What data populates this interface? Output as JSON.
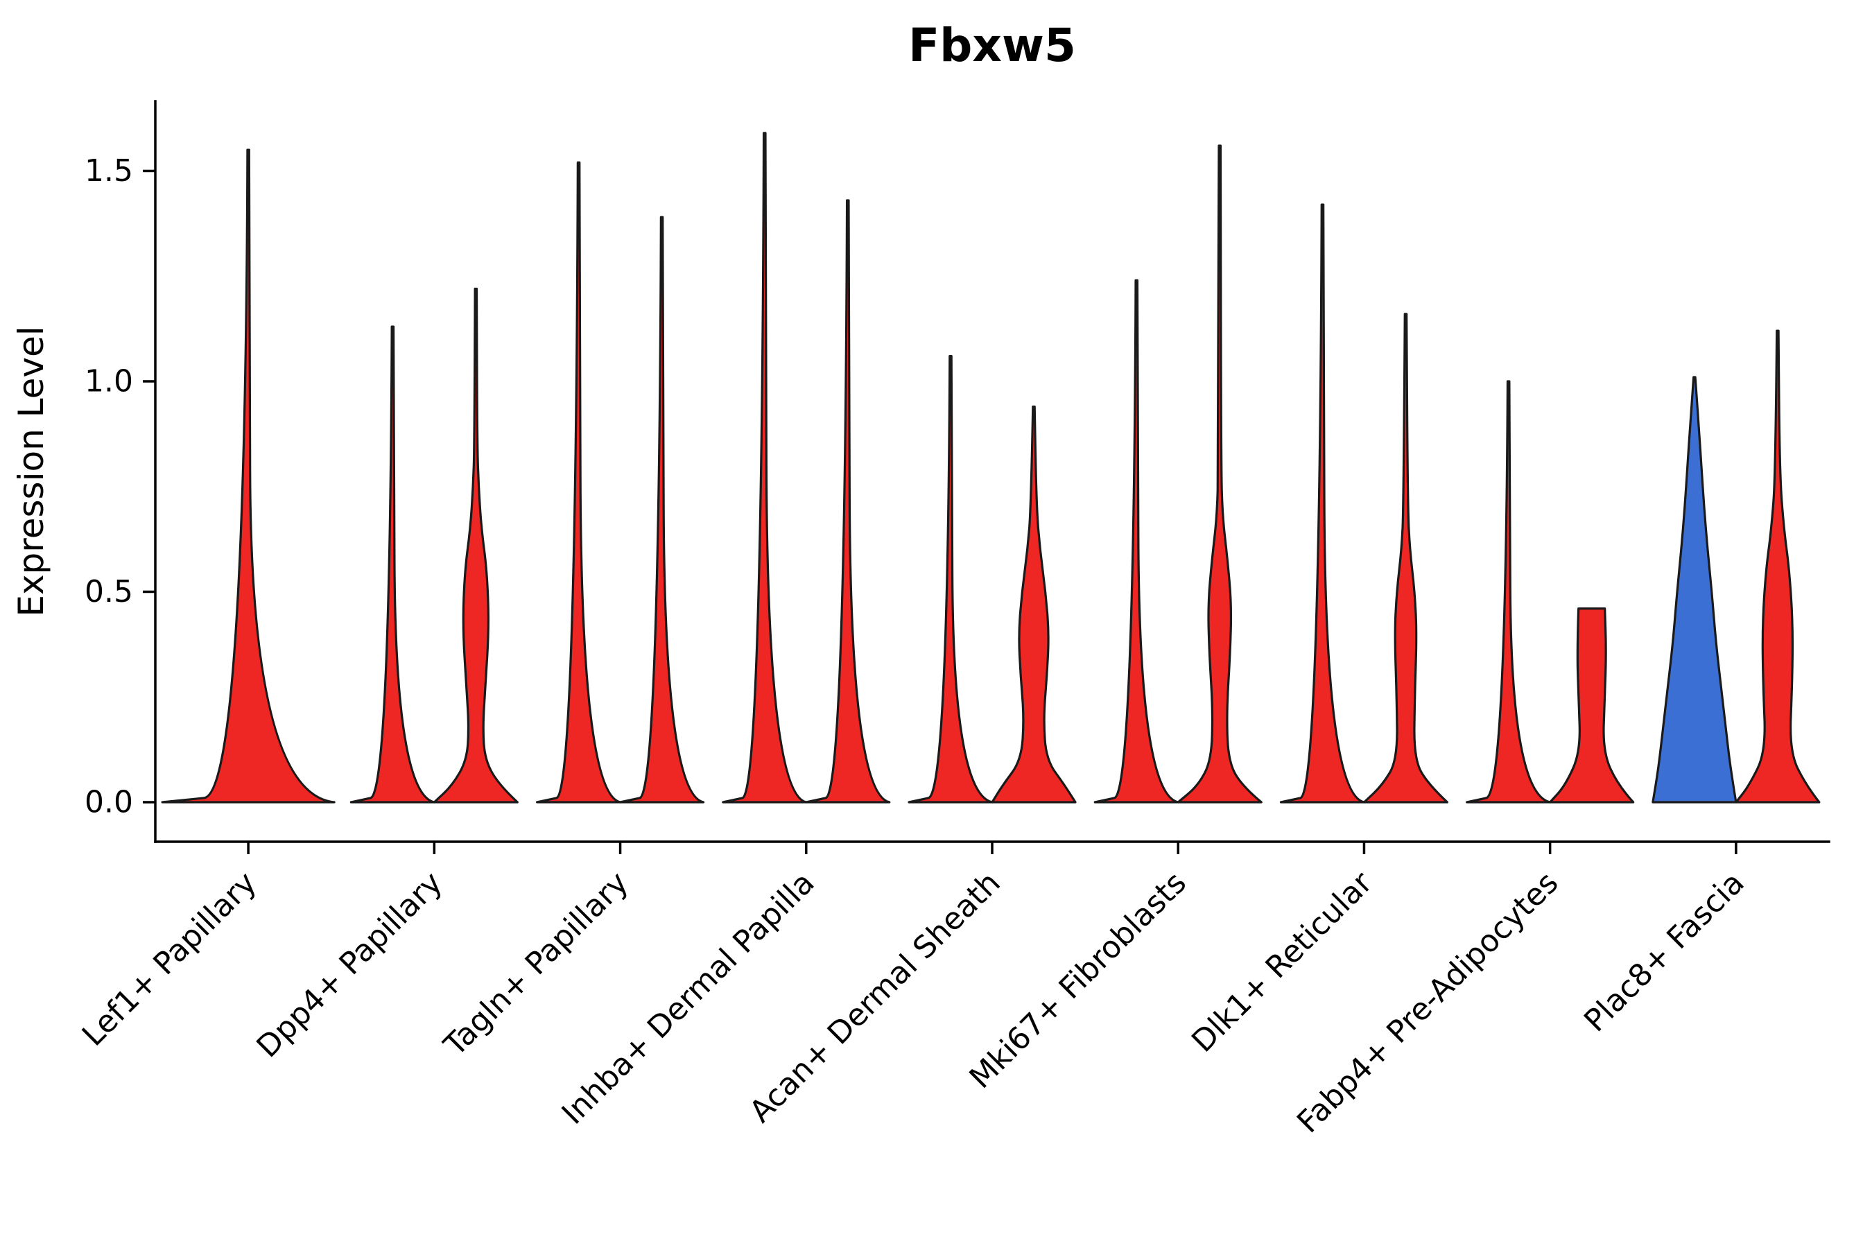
{
  "colors": {
    "red": "#ee2724",
    "blue": "#3b6fd4",
    "outline": "#1a1a1a",
    "background": "#ffffff"
  },
  "chart_data": {
    "type": "violin",
    "title": "Fbxw5",
    "xlabel": "",
    "ylabel": "Expression Level",
    "ylim": [
      -0.05,
      1.66
    ],
    "grid": false,
    "legend": null,
    "ytick_labels": [
      "0.0",
      "0.5",
      "1.0",
      "1.5"
    ],
    "ytick_values": [
      0,
      0.5,
      1.0,
      1.5
    ],
    "categories": [
      "Lef1+ Papillary",
      "Dpp4+ Papillary",
      "Tagln+ Papillary",
      "Inhba+ Dermal Papilla",
      "Acan+ Dermal Sheath",
      "Mki67+ Fibroblasts",
      "Dlk1+ Reticular",
      "Fabp4+ Pre-Adipocytes",
      "Plac8+ Fascia"
    ],
    "violins": [
      {
        "cat": 0,
        "category": "Lef1+ Papillary",
        "group": "single",
        "offset": 0,
        "fill": "red",
        "max_expression": 1.55,
        "bulk_at_zero": true,
        "profile": [
          [
            0,
            124
          ],
          [
            0.02,
            4
          ],
          [
            1.55,
            1.2
          ]
        ]
      },
      {
        "cat": 1,
        "category": "Dpp4+ Papillary",
        "group": "left",
        "offset": -60,
        "fill": "red",
        "max_expression": 1.13,
        "bulk_at_zero": true,
        "profile": [
          [
            0,
            60
          ],
          [
            0.02,
            4
          ],
          [
            1.13,
            1.2
          ]
        ]
      },
      {
        "cat": 1,
        "category": "Dpp4+ Papillary",
        "group": "right",
        "offset": 60,
        "fill": "red",
        "max_expression": 1.22,
        "bulge_center": 0.45,
        "profile": [
          [
            0,
            60
          ],
          [
            0.04,
            34
          ],
          [
            0.1,
            13
          ],
          [
            0.18,
            10
          ],
          [
            0.28,
            14
          ],
          [
            0.42,
            19
          ],
          [
            0.55,
            16
          ],
          [
            0.65,
            8
          ],
          [
            0.75,
            4
          ],
          [
            0.85,
            2
          ],
          [
            1.22,
            1.2
          ]
        ]
      },
      {
        "cat": 2,
        "category": "Tagln+ Papillary",
        "group": "left",
        "offset": -60,
        "fill": "red",
        "max_expression": 1.52,
        "bulk_at_zero": true,
        "profile": [
          [
            0,
            60
          ],
          [
            0.02,
            4
          ],
          [
            1.52,
            1.2
          ]
        ]
      },
      {
        "cat": 2,
        "category": "Tagln+ Papillary",
        "group": "right",
        "offset": 60,
        "fill": "red",
        "max_expression": 1.39,
        "bulk_at_zero": true,
        "profile": [
          [
            0,
            60
          ],
          [
            0.02,
            4
          ],
          [
            1.39,
            1.2
          ]
        ]
      },
      {
        "cat": 3,
        "category": "Inhba+ Dermal Papilla",
        "group": "left",
        "offset": -60,
        "fill": "red",
        "max_expression": 1.59,
        "bulk_at_zero": true,
        "profile": [
          [
            0,
            60
          ],
          [
            0.02,
            4
          ],
          [
            1.59,
            1.2
          ]
        ]
      },
      {
        "cat": 3,
        "category": "Inhba+ Dermal Papilla",
        "group": "right",
        "offset": 60,
        "fill": "red",
        "max_expression": 1.43,
        "bulk_at_zero": true,
        "profile": [
          [
            0,
            60
          ],
          [
            0.02,
            4
          ],
          [
            1.43,
            1.2
          ]
        ]
      },
      {
        "cat": 4,
        "category": "Acan+ Dermal Sheath",
        "group": "left",
        "offset": -60,
        "fill": "red",
        "max_expression": 1.06,
        "bulk_at_zero": true,
        "profile": [
          [
            0,
            60
          ],
          [
            0.02,
            4
          ],
          [
            1.06,
            1.2
          ]
        ]
      },
      {
        "cat": 4,
        "category": "Acan+ Dermal Sheath",
        "group": "right",
        "offset": 60,
        "fill": "red",
        "max_expression": 0.94,
        "bulge_center": 0.4,
        "profile": [
          [
            0,
            60
          ],
          [
            0.04,
            45
          ],
          [
            0.1,
            18
          ],
          [
            0.2,
            14
          ],
          [
            0.3,
            19
          ],
          [
            0.4,
            22
          ],
          [
            0.5,
            17
          ],
          [
            0.6,
            9
          ],
          [
            0.7,
            4
          ],
          [
            0.94,
            1.2
          ]
        ]
      },
      {
        "cat": 5,
        "category": "Mki67+ Fibroblasts",
        "group": "left",
        "offset": -60,
        "fill": "red",
        "max_expression": 1.24,
        "bulk_at_zero": true,
        "profile": [
          [
            0,
            60
          ],
          [
            0.02,
            4
          ],
          [
            1.24,
            1.2
          ]
        ]
      },
      {
        "cat": 5,
        "category": "Mki67+ Fibroblasts",
        "group": "right",
        "offset": 60,
        "fill": "red",
        "max_expression": 1.56,
        "bulge_center": 0.45,
        "profile": [
          [
            0,
            60
          ],
          [
            0.04,
            31
          ],
          [
            0.1,
            12
          ],
          [
            0.22,
            10
          ],
          [
            0.35,
            15
          ],
          [
            0.47,
            17
          ],
          [
            0.58,
            11
          ],
          [
            0.68,
            4
          ],
          [
            0.8,
            2
          ],
          [
            1.56,
            1.2
          ]
        ]
      },
      {
        "cat": 6,
        "category": "Dlk1+ Reticular",
        "group": "left",
        "offset": -60,
        "fill": "red",
        "max_expression": 1.42,
        "bulk_at_zero": true,
        "profile": [
          [
            0,
            60
          ],
          [
            0.02,
            4
          ],
          [
            1.42,
            1.2
          ]
        ]
      },
      {
        "cat": 6,
        "category": "Dlk1+ Reticular",
        "group": "right",
        "offset": 60,
        "fill": "red",
        "max_expression": 1.16,
        "bulge_center": 0.42,
        "profile": [
          [
            0,
            60
          ],
          [
            0.04,
            34
          ],
          [
            0.1,
            12
          ],
          [
            0.25,
            13
          ],
          [
            0.4,
            16
          ],
          [
            0.5,
            13
          ],
          [
            0.6,
            6
          ],
          [
            0.7,
            3
          ],
          [
            1.16,
            1.2
          ]
        ]
      },
      {
        "cat": 7,
        "category": "Fabp4+ Pre-Adipocytes",
        "group": "left",
        "offset": -60,
        "fill": "red",
        "max_expression": 1.0,
        "bulk_at_zero": true,
        "profile": [
          [
            0,
            60
          ],
          [
            0.02,
            4
          ],
          [
            1.0,
            1.2
          ]
        ]
      },
      {
        "cat": 7,
        "category": "Fabp4+ Pre-Adipocytes",
        "group": "right",
        "offset": 60,
        "fill": "red",
        "max_expression": 0.46,
        "truncated_top": true,
        "profile": [
          [
            0,
            60
          ],
          [
            0.04,
            38
          ],
          [
            0.12,
            16
          ],
          [
            0.25,
            19
          ],
          [
            0.36,
            21
          ],
          [
            0.46,
            19
          ]
        ]
      },
      {
        "cat": 8,
        "category": "Plac8+ Fascia",
        "group": "left",
        "offset": -60,
        "fill": "blue",
        "max_expression": 1.01,
        "teardrop": true,
        "profile": [
          [
            0,
            60
          ],
          [
            0.08,
            52
          ],
          [
            0.18,
            45
          ],
          [
            0.28,
            38
          ],
          [
            0.38,
            31
          ],
          [
            0.5,
            25
          ],
          [
            0.6,
            19
          ],
          [
            0.7,
            14
          ],
          [
            0.8,
            10
          ],
          [
            0.9,
            6
          ],
          [
            1.01,
            1.2
          ]
        ]
      },
      {
        "cat": 8,
        "category": "Plac8+ Fascia",
        "group": "right",
        "offset": 60,
        "fill": "red",
        "max_expression": 1.12,
        "bulge_center": 0.45,
        "profile": [
          [
            0,
            60
          ],
          [
            0.04,
            41
          ],
          [
            0.12,
            17
          ],
          [
            0.28,
            21
          ],
          [
            0.42,
            22
          ],
          [
            0.55,
            17
          ],
          [
            0.65,
            9
          ],
          [
            0.78,
            3
          ],
          [
            1.12,
            1.2
          ]
        ]
      }
    ]
  }
}
